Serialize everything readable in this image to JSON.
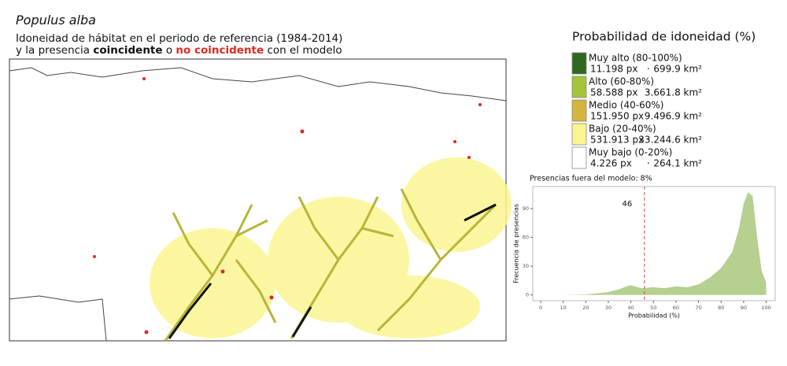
{
  "header": {
    "title": "Populus alba",
    "subtitle_line1": "Idoneidad de hábitat en el periodo de referencia (1984-2014)",
    "subtitle_line2": [
      "y la presencia ",
      "coincidente",
      " o ",
      "no coincidente",
      " con el modelo"
    ]
  },
  "legend": {
    "title": "Probabilidad de idoneidad (%)",
    "separator": "·",
    "items": [
      {
        "label": "Muy alto (80-100%)",
        "pixels": "11.198 px",
        "area": "699.9 km²",
        "color": "#2d6a1f"
      },
      {
        "label": "Alto (60-80%)",
        "pixels": "58.588 px",
        "area": "3.661.8 km²",
        "color": "#a4c43a"
      },
      {
        "label": "Medio (40-60%)",
        "pixels": "151.950 px",
        "area": "9.496.9 km²",
        "color": "#d4b43c"
      },
      {
        "label": "Bajo (20-40%)",
        "pixels": "531.913 px",
        "area": "33.244.6 km²",
        "color": "#fbf591"
      },
      {
        "label": "Muy bajo (0-20%)",
        "pixels": "4.226 px",
        "area": "264.1 km²",
        "color": "#ffffff"
      }
    ]
  },
  "chart_data": {
    "type": "area",
    "title": "Presencias fuera del modelo: 8%",
    "x_label": "Probabilidad (%)",
    "y_label": "Frecuencia de presencias",
    "x": [
      0,
      10,
      20,
      30,
      35,
      38,
      40,
      43,
      45,
      50,
      55,
      60,
      65,
      70,
      75,
      80,
      85,
      88,
      90,
      92,
      94,
      96,
      98,
      100
    ],
    "y": [
      0,
      0,
      0.5,
      3,
      6,
      9,
      10,
      8,
      7,
      8,
      7,
      9,
      8,
      11,
      18,
      28,
      45,
      70,
      95,
      107,
      103,
      60,
      25,
      13
    ],
    "color": "#b5d08f",
    "vline": 46,
    "vline_color": "#d9413b",
    "xlim": [
      -3.5,
      104
    ],
    "ylim": [
      -6,
      113
    ],
    "xticks": [
      0,
      10,
      20,
      30,
      40,
      50,
      60,
      70,
      80,
      90,
      100
    ],
    "yticks": [
      0,
      30,
      60,
      90
    ]
  }
}
